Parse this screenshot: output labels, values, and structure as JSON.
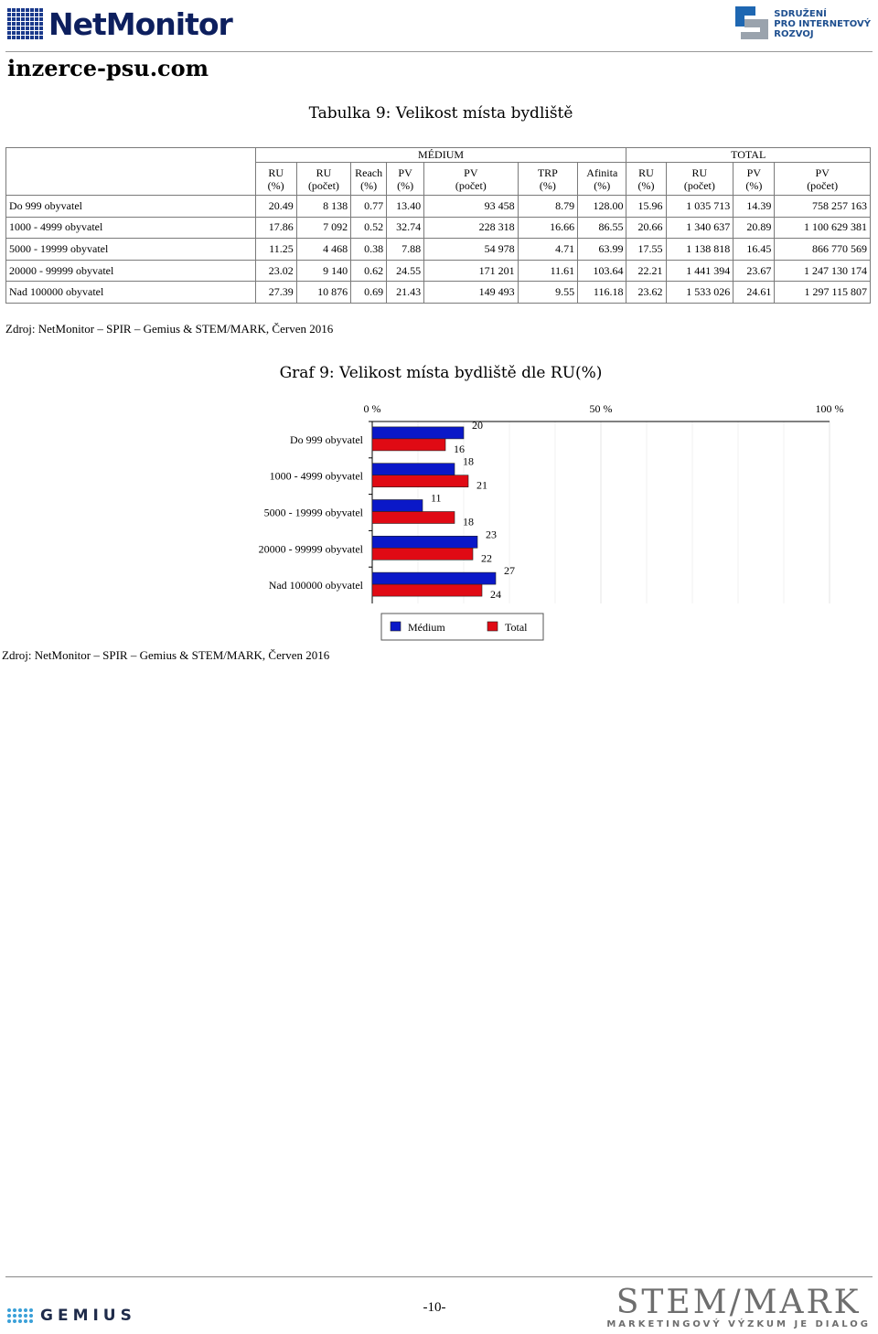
{
  "header": {
    "logo_left": "NetMonitor",
    "logo_right_lines": [
      "SDRUŽENÍ",
      "PRO INTERNETOVÝ",
      "ROZVOJ"
    ],
    "site": "inzerce-psu.com"
  },
  "table": {
    "title": "Tabulka 9: Velikost místa bydliště",
    "group_medium": "MÉDIUM",
    "group_total": "TOTAL",
    "columns": [
      [
        "RU",
        "(%)"
      ],
      [
        "RU",
        "(počet)"
      ],
      [
        "Reach",
        "(%)"
      ],
      [
        "PV",
        "(%)"
      ],
      [
        "PV",
        "(počet)"
      ],
      [
        "TRP",
        "(%)"
      ],
      [
        "Afinita",
        "(%)"
      ],
      [
        "RU",
        "(%)"
      ],
      [
        "RU",
        "(počet)"
      ],
      [
        "PV",
        "(%)"
      ],
      [
        "PV",
        "(počet)"
      ]
    ],
    "rows": [
      {
        "label": "Do 999 obyvatel",
        "cells": [
          "20.49",
          "8 138",
          "0.77",
          "13.40",
          "93 458",
          "8.79",
          "128.00",
          "15.96",
          "1 035 713",
          "14.39",
          "758 257 163"
        ]
      },
      {
        "label": "1000 - 4999 obyvatel",
        "cells": [
          "17.86",
          "7 092",
          "0.52",
          "32.74",
          "228 318",
          "16.66",
          "86.55",
          "20.66",
          "1 340 637",
          "20.89",
          "1 100 629 381"
        ]
      },
      {
        "label": "5000 - 19999 obyvatel",
        "cells": [
          "11.25",
          "4 468",
          "0.38",
          "7.88",
          "54 978",
          "4.71",
          "63.99",
          "17.55",
          "1 138 818",
          "16.45",
          "866 770 569"
        ]
      },
      {
        "label": "20000 - 99999 obyvatel",
        "cells": [
          "23.02",
          "9 140",
          "0.62",
          "24.55",
          "171 201",
          "11.61",
          "103.64",
          "22.21",
          "1 441 394",
          "23.67",
          "1 247 130 174"
        ]
      },
      {
        "label": "Nad 100000 obyvatel",
        "cells": [
          "27.39",
          "10 876",
          "0.69",
          "21.43",
          "149 493",
          "9.55",
          "116.18",
          "23.62",
          "1 533 026",
          "24.61",
          "1 297 115 807"
        ]
      }
    ],
    "source": "Zdroj: NetMonitor – SPIR – Gemius & STEM/MARK, Červen 2016"
  },
  "chart": {
    "title": "Graf 9: Velikost místa bydliště dle RU(%)",
    "source": "Zdroj: NetMonitor – SPIR – Gemius & STEM/MARK, Červen 2016"
  },
  "chart_data": {
    "type": "bar",
    "orientation": "horizontal",
    "categories": [
      "Do 999 obyvatel",
      "1000 - 4999 obyvatel",
      "5000 - 19999 obyvatel",
      "20000 - 99999 obyvatel",
      "Nad 100000 obyvatel"
    ],
    "series": [
      {
        "name": "Médium",
        "values": [
          20,
          18,
          11,
          23,
          27
        ],
        "color": "#0a18c8"
      },
      {
        "name": "Total",
        "values": [
          16,
          21,
          18,
          22,
          24
        ],
        "color": "#e00a14"
      }
    ],
    "xlim": [
      0,
      100
    ],
    "tick_labels": [
      "0 %",
      "50 %",
      "100 %"
    ],
    "tick_values": [
      0,
      50,
      100
    ],
    "legend_position": "bottom",
    "grid": true
  },
  "footer": {
    "left_logo": "GEMIUS",
    "page": "-10-",
    "right_logo": "STEM/MARK",
    "right_sub": "MARKETINGOVÝ VÝZKUM JE DIALOG"
  }
}
